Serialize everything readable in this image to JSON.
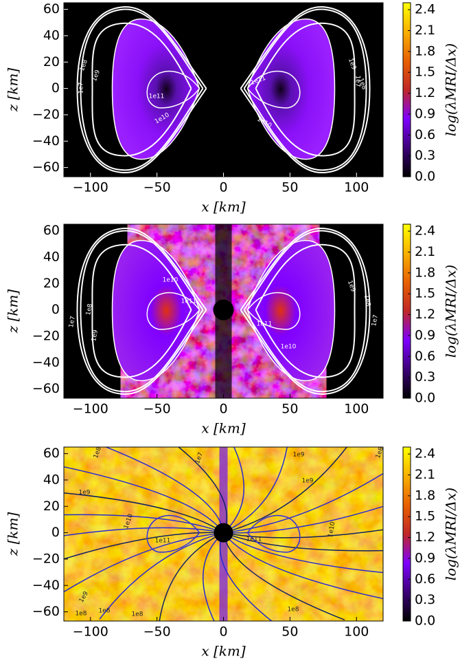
{
  "chart_data": [
    {
      "type": "heatmap",
      "xlabel": "x [km]",
      "ylabel": "z [km]",
      "xlim": [
        -120,
        120
      ],
      "ylim": [
        -67,
        65
      ],
      "xticks": [
        {
          "value": -100,
          "label": "−100"
        },
        {
          "value": -50,
          "label": "−50"
        },
        0,
        50,
        100
      ],
      "yticks": [
        {
          "value": -60,
          "label": "−60"
        },
        {
          "value": -40,
          "label": "−40"
        },
        {
          "value": -20,
          "label": "−20"
        },
        0,
        20,
        40,
        60
      ],
      "colorbar": {
        "label": "log(λMRI/Δx)",
        "lim": [
          0,
          2.5
        ],
        "ticks": [
          {
            "value": 0,
            "label": "0.0"
          },
          0.3,
          0.6,
          0.9,
          1.2,
          1.5,
          1.8,
          2.1,
          2.4
        ],
        "colormap": [
          "#000000",
          "#3c0078",
          "#7f00ff",
          "#c02828",
          "#e86000",
          "#f8b000",
          "#ffff00"
        ]
      },
      "contour_labels": [
        "1e8",
        "1e9",
        "1e7",
        "1e11",
        "1e10",
        "1e11",
        "1e10",
        "1e9",
        "1e8",
        "1e7"
      ]
    },
    {
      "type": "heatmap",
      "xlabel": "x [km]",
      "ylabel": "z [km]",
      "xlim": [
        -120,
        120
      ],
      "ylim": [
        -67,
        65
      ],
      "xticks": [
        {
          "value": -100,
          "label": "−100"
        },
        {
          "value": -50,
          "label": "−50"
        },
        0,
        50,
        100
      ],
      "yticks": [
        {
          "value": -60,
          "label": "−60"
        },
        {
          "value": -40,
          "label": "−40"
        },
        {
          "value": -20,
          "label": "−20"
        },
        0,
        20,
        40,
        60
      ],
      "colorbar": {
        "label": "log(λMRI/Δx)",
        "lim": [
          0,
          2.5
        ],
        "ticks": [
          {
            "value": 0,
            "label": "0.0"
          },
          0.3,
          0.6,
          0.9,
          1.2,
          1.5,
          1.8,
          2.1,
          2.4
        ],
        "colormap": [
          "#000000",
          "#3c0078",
          "#7f00ff",
          "#c02828",
          "#e86000",
          "#f8b000",
          "#ffff00"
        ]
      },
      "contour_labels": [
        "1e10",
        "1e11",
        "1e7",
        "1e8",
        "1e9",
        "1e11",
        "1e10",
        "1e9",
        "1e8",
        "1e7"
      ]
    },
    {
      "type": "heatmap",
      "xlabel": "x [km]",
      "ylabel": "z [km]",
      "xlim": [
        -120,
        120
      ],
      "ylim": [
        -67,
        65
      ],
      "xticks": [
        {
          "value": -100,
          "label": "−100"
        },
        {
          "value": -50,
          "label": "−50"
        },
        0,
        50,
        100
      ],
      "yticks": [
        {
          "value": -60,
          "label": "−60"
        },
        {
          "value": -40,
          "label": "−40"
        },
        {
          "value": -20,
          "label": "−20"
        },
        0,
        20,
        40,
        60
      ],
      "colorbar": {
        "label": "log(λMRI/Δx)",
        "lim": [
          0,
          2.5
        ],
        "ticks": [
          {
            "value": 0,
            "label": "0.0"
          },
          0.3,
          0.6,
          0.9,
          1.2,
          1.5,
          1.8,
          2.1,
          2.4
        ],
        "colormap": [
          "#000000",
          "#3c0078",
          "#7f00ff",
          "#c02828",
          "#e86000",
          "#f8b000",
          "#ffff00"
        ]
      },
      "contour_labels": [
        "1e8",
        "1e9",
        "1e10",
        "1e11",
        "1e9",
        "1e8",
        "1e8",
        "1e8",
        "1e7",
        "1e11",
        "1e10",
        "1e9",
        "1e9",
        "1e8",
        "1e8"
      ]
    }
  ]
}
